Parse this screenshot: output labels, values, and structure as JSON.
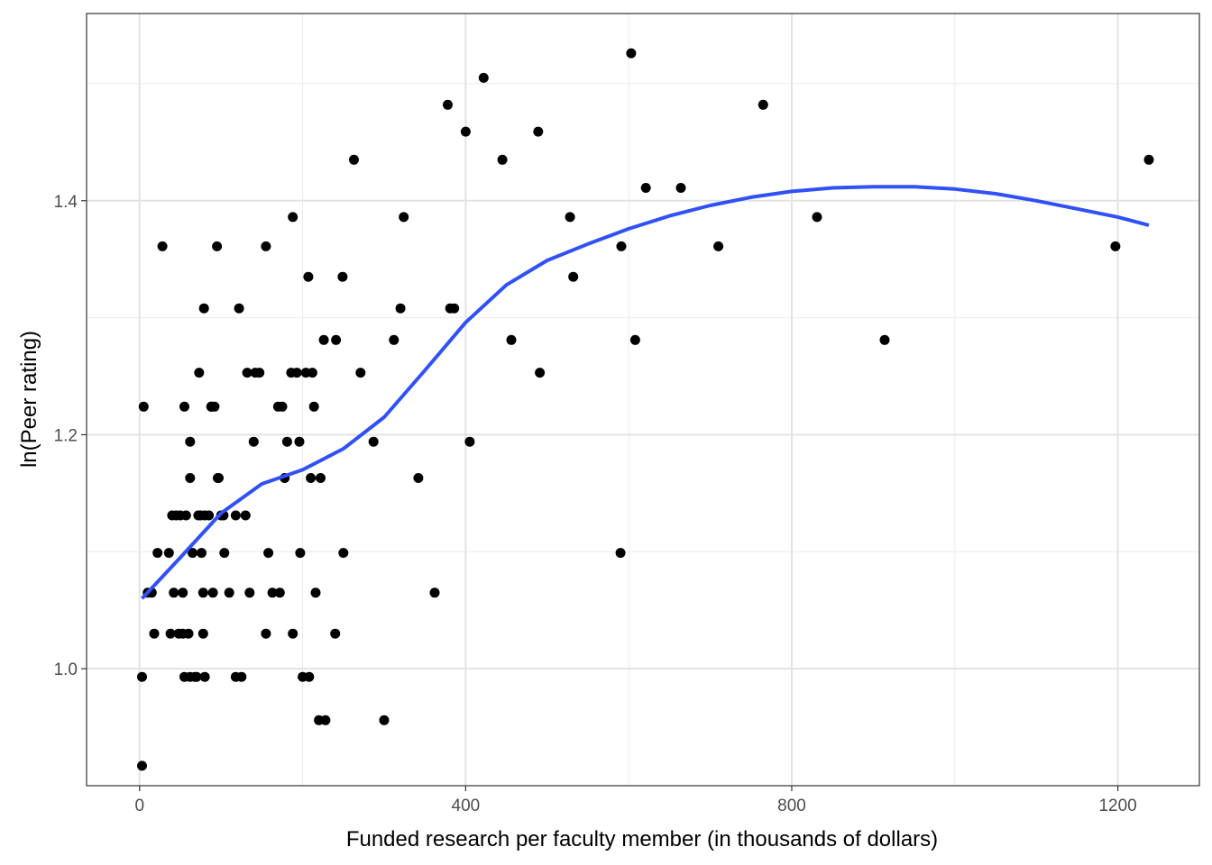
{
  "chart_data": {
    "type": "scatter",
    "title": "",
    "xlabel": "Funded research per faculty member (in thousands of dollars)",
    "ylabel": "ln(Peer rating)",
    "xlim": [
      -65,
      1300
    ],
    "ylim": [
      0.9,
      1.56
    ],
    "x_ticks": [
      0,
      400,
      800,
      1200
    ],
    "x_tick_labels": [
      "0",
      "400",
      "800",
      "1200"
    ],
    "y_ticks": [
      1.0,
      1.2,
      1.4
    ],
    "y_tick_labels": [
      "1.0",
      "1.2",
      "1.4"
    ],
    "grid": true,
    "point_color": "#000000",
    "smooth_color": "#3050F8",
    "points": [
      [
        3,
        0.917
      ],
      [
        3,
        0.993
      ],
      [
        5,
        1.224
      ],
      [
        10,
        1.065
      ],
      [
        15,
        1.065
      ],
      [
        18,
        1.03
      ],
      [
        22,
        1.099
      ],
      [
        28,
        1.361
      ],
      [
        36,
        1.099
      ],
      [
        38,
        1.03
      ],
      [
        40,
        1.131
      ],
      [
        42,
        1.065
      ],
      [
        45,
        1.131
      ],
      [
        48,
        1.03
      ],
      [
        50,
        1.131
      ],
      [
        53,
        1.065
      ],
      [
        53,
        1.03
      ],
      [
        55,
        1.224
      ],
      [
        55,
        0.993
      ],
      [
        57,
        1.131
      ],
      [
        60,
        1.03
      ],
      [
        62,
        0.993
      ],
      [
        62,
        1.163
      ],
      [
        62,
        1.194
      ],
      [
        65,
        1.099
      ],
      [
        68,
        0.993
      ],
      [
        70,
        0.993
      ],
      [
        72,
        1.131
      ],
      [
        73,
        1.253
      ],
      [
        75,
        1.131
      ],
      [
        76,
        1.099
      ],
      [
        78,
        1.065
      ],
      [
        78,
        1.03
      ],
      [
        79,
        1.308
      ],
      [
        80,
        1.131
      ],
      [
        80,
        0.993
      ],
      [
        85,
        1.131
      ],
      [
        88,
        1.224
      ],
      [
        88,
        1.224
      ],
      [
        90,
        1.065
      ],
      [
        92,
        1.224
      ],
      [
        95,
        1.361
      ],
      [
        96,
        1.163
      ],
      [
        97,
        1.163
      ],
      [
        100,
        1.131
      ],
      [
        103,
        1.131
      ],
      [
        104,
        1.099
      ],
      [
        110,
        1.065
      ],
      [
        118,
        0.993
      ],
      [
        118,
        1.131
      ],
      [
        122,
        1.308
      ],
      [
        125,
        0.993
      ],
      [
        130,
        1.131
      ],
      [
        132,
        1.253
      ],
      [
        135,
        1.065
      ],
      [
        140,
        1.194
      ],
      [
        142,
        1.253
      ],
      [
        147,
        1.253
      ],
      [
        155,
        1.03
      ],
      [
        155,
        1.361
      ],
      [
        158,
        1.099
      ],
      [
        163,
        1.065
      ],
      [
        170,
        1.224
      ],
      [
        172,
        1.065
      ],
      [
        175,
        1.224
      ],
      [
        178,
        1.163
      ],
      [
        181,
        1.194
      ],
      [
        186,
        1.253
      ],
      [
        188,
        1.03
      ],
      [
        188,
        1.386
      ],
      [
        193,
        1.253
      ],
      [
        196,
        1.194
      ],
      [
        197,
        1.099
      ],
      [
        200,
        0.993
      ],
      [
        204,
        1.253
      ],
      [
        207,
        1.335
      ],
      [
        208,
        0.993
      ],
      [
        210,
        1.163
      ],
      [
        212,
        1.253
      ],
      [
        214,
        1.224
      ],
      [
        216,
        1.065
      ],
      [
        220,
        0.956
      ],
      [
        222,
        1.163
      ],
      [
        226,
        1.281
      ],
      [
        228,
        0.956
      ],
      [
        240,
        1.03
      ],
      [
        241,
        1.281
      ],
      [
        249,
        1.335
      ],
      [
        250,
        1.099
      ],
      [
        263,
        1.435
      ],
      [
        271,
        1.253
      ],
      [
        287,
        1.194
      ],
      [
        300,
        0.956
      ],
      [
        312,
        1.281
      ],
      [
        320,
        1.308
      ],
      [
        324,
        1.386
      ],
      [
        342,
        1.163
      ],
      [
        362,
        1.065
      ],
      [
        378,
        1.482
      ],
      [
        381,
        1.308
      ],
      [
        386,
        1.308
      ],
      [
        400,
        1.459
      ],
      [
        405,
        1.194
      ],
      [
        422,
        1.505
      ],
      [
        445,
        1.435
      ],
      [
        456,
        1.281
      ],
      [
        489,
        1.459
      ],
      [
        491,
        1.253
      ],
      [
        528,
        1.386
      ],
      [
        532,
        1.335
      ],
      [
        590,
        1.099
      ],
      [
        591,
        1.361
      ],
      [
        603,
        1.526
      ],
      [
        608,
        1.281
      ],
      [
        621,
        1.411
      ],
      [
        664,
        1.411
      ],
      [
        710,
        1.361
      ],
      [
        765,
        1.482
      ],
      [
        831,
        1.386
      ],
      [
        914,
        1.281
      ],
      [
        1197,
        1.361
      ],
      [
        1238,
        1.435
      ]
    ],
    "smooth": [
      [
        3,
        1.06
      ],
      [
        50,
        1.095
      ],
      [
        100,
        1.133
      ],
      [
        150,
        1.158
      ],
      [
        200,
        1.17
      ],
      [
        250,
        1.188
      ],
      [
        300,
        1.215
      ],
      [
        350,
        1.255
      ],
      [
        400,
        1.296
      ],
      [
        450,
        1.328
      ],
      [
        500,
        1.349
      ],
      [
        550,
        1.363
      ],
      [
        600,
        1.376
      ],
      [
        650,
        1.387
      ],
      [
        700,
        1.396
      ],
      [
        750,
        1.403
      ],
      [
        800,
        1.408
      ],
      [
        850,
        1.411
      ],
      [
        900,
        1.412
      ],
      [
        950,
        1.412
      ],
      [
        1000,
        1.41
      ],
      [
        1050,
        1.406
      ],
      [
        1100,
        1.4
      ],
      [
        1150,
        1.393
      ],
      [
        1200,
        1.386
      ],
      [
        1238,
        1.379
      ]
    ]
  }
}
